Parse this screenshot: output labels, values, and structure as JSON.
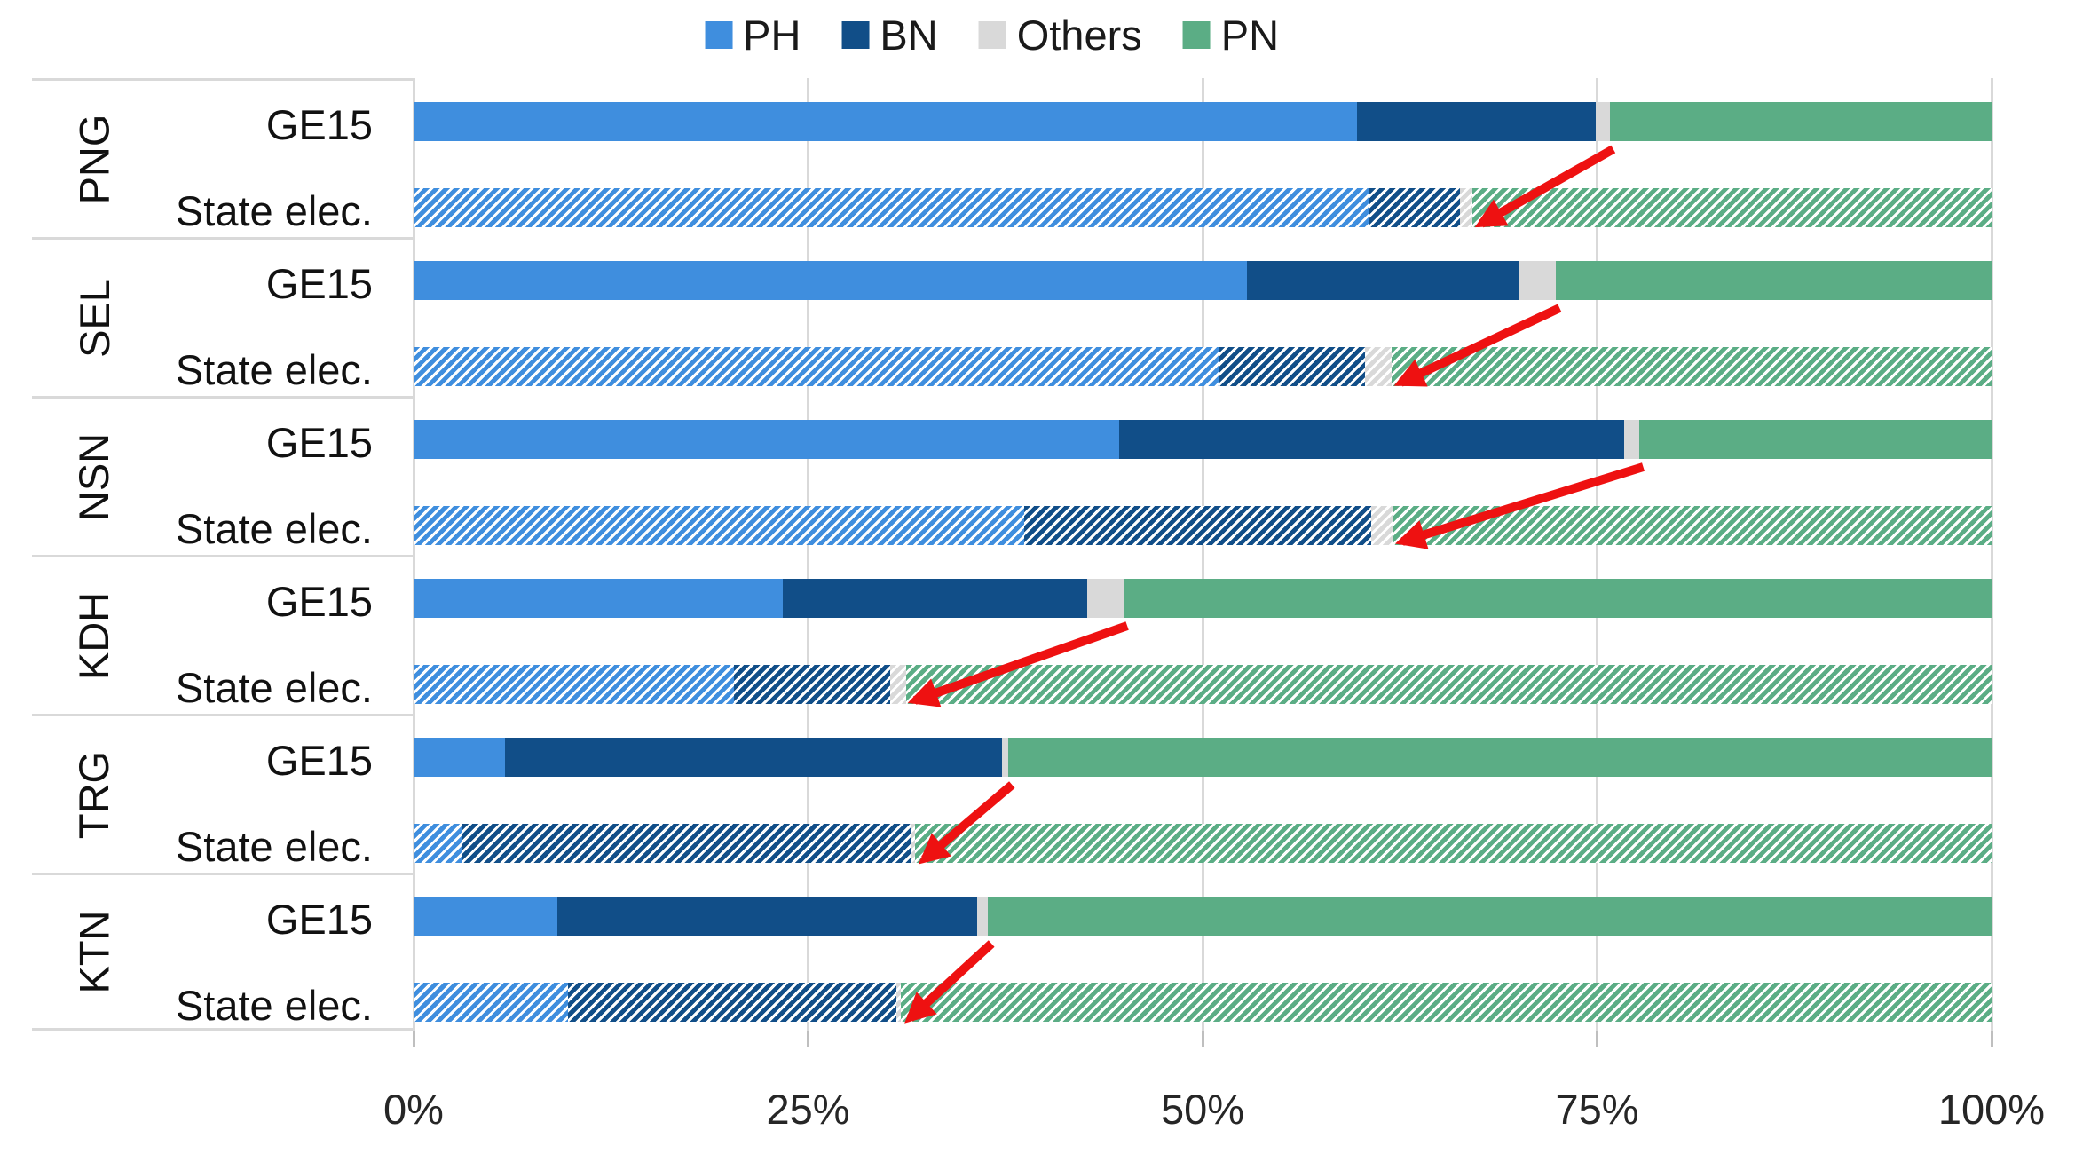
{
  "legend": {
    "items": [
      {
        "label": "PH",
        "color": "#3f8ede"
      },
      {
        "label": "BN",
        "color": "#114e88"
      },
      {
        "label": "Others",
        "color": "#d9d9d9"
      },
      {
        "label": "PN",
        "color": "#5bad85"
      }
    ]
  },
  "x_axis": {
    "tick_labels": [
      "0%",
      "25%",
      "50%",
      "75%",
      "100%"
    ],
    "tick_values": [
      0,
      25,
      50,
      75,
      100
    ]
  },
  "chart_data": {
    "type": "bar",
    "orientation": "horizontal",
    "stacked": true,
    "units": "percent",
    "xlim": [
      0,
      100
    ],
    "grid": true,
    "legend_position": "top-center",
    "series": [
      "PH",
      "BN",
      "Others",
      "PN"
    ],
    "colors": {
      "PH": "#3f8ede",
      "BN": "#114e88",
      "Others": "#d9d9d9",
      "PN": "#5bad85"
    },
    "fill_style": {
      "GE15": "solid",
      "State elec.": "diagonal-hatch"
    },
    "groups": [
      {
        "state": "PNG",
        "rows": [
          {
            "label": "GE15",
            "values": {
              "PH": 59.8,
              "BN": 15.1,
              "Others": 0.9,
              "PN": 24.2
            }
          },
          {
            "label": "State elec.",
            "values": {
              "PH": 60.6,
              "BN": 5.7,
              "Others": 0.8,
              "PN": 32.9
            }
          }
        ]
      },
      {
        "state": "SEL",
        "rows": [
          {
            "label": "GE15",
            "values": {
              "PH": 52.8,
              "BN": 17.3,
              "Others": 2.3,
              "PN": 27.6
            }
          },
          {
            "label": "State elec.",
            "values": {
              "PH": 51.0,
              "BN": 9.3,
              "Others": 1.7,
              "PN": 38.0
            }
          }
        ]
      },
      {
        "state": "NSN",
        "rows": [
          {
            "label": "GE15",
            "values": {
              "PH": 44.7,
              "BN": 32.0,
              "Others": 1.0,
              "PN": 22.3
            }
          },
          {
            "label": "State elec.",
            "values": {
              "PH": 38.7,
              "BN": 22.0,
              "Others": 1.4,
              "PN": 37.9
            }
          }
        ]
      },
      {
        "state": "KDH",
        "rows": [
          {
            "label": "GE15",
            "values": {
              "PH": 23.4,
              "BN": 19.3,
              "Others": 2.3,
              "PN": 55.0
            }
          },
          {
            "label": "State elec.",
            "values": {
              "PH": 20.3,
              "BN": 9.9,
              "Others": 1.0,
              "PN": 68.8
            }
          }
        ]
      },
      {
        "state": "TRG",
        "rows": [
          {
            "label": "GE15",
            "values": {
              "PH": 5.8,
              "BN": 31.5,
              "Others": 0.4,
              "PN": 62.3
            }
          },
          {
            "label": "State elec.",
            "values": {
              "PH": 3.1,
              "BN": 28.4,
              "Others": 0.3,
              "PN": 68.2
            }
          }
        ]
      },
      {
        "state": "KTN",
        "rows": [
          {
            "label": "GE15",
            "values": {
              "PH": 9.1,
              "BN": 26.6,
              "Others": 0.7,
              "PN": 63.6
            }
          },
          {
            "label": "State elec.",
            "values": {
              "PH": 9.8,
              "BN": 20.8,
              "Others": 0.3,
              "PN": 69.1
            }
          }
        ]
      }
    ],
    "annotations": {
      "arrows": {
        "color": "#ee1111",
        "description": "one red arrow per state pointing from the end of the non-PN share in the GE15 bar down-left to the end of the non-PN share in the State elec. bar"
      }
    }
  }
}
